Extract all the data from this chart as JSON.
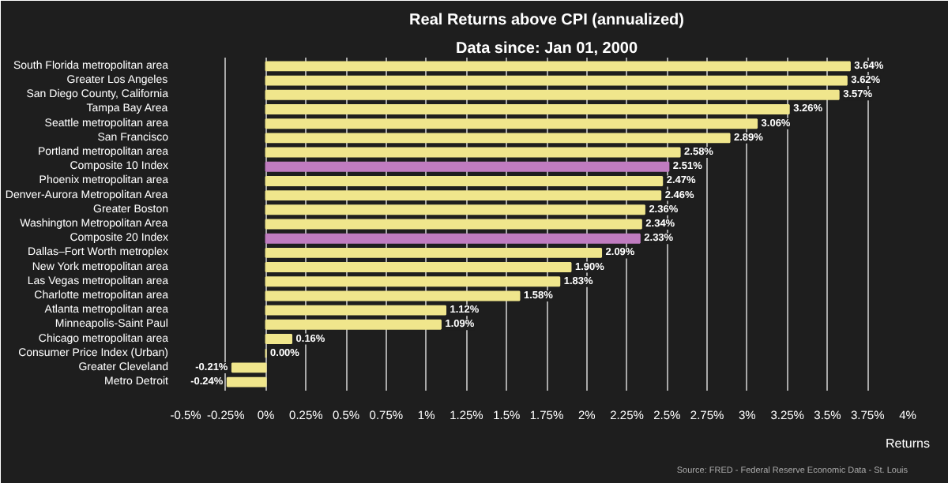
{
  "chart_data": {
    "type": "bar",
    "orientation": "horizontal",
    "title": "Real Returns above CPI (annualized)",
    "subtitle": "Data since: Jan 01, 2000",
    "xlabel": "Returns",
    "categories": [
      "South Florida metropolitan area",
      "Greater Los Angeles",
      "San Diego County, California",
      "Tampa Bay Area",
      "Seattle metropolitan area",
      "San Francisco",
      "Portland metropolitan area",
      "Composite 10 Index",
      "Phoenix metropolitan area",
      "Denver-Aurora Metropolitan Area",
      "Greater Boston",
      "Washington Metropolitan Area",
      "Composite 20 Index",
      "Dallas–Fort Worth metroplex",
      "New York metropolitan area",
      "Las Vegas metropolitan area",
      "Charlotte metropolitan area",
      "Atlanta metropolitan area",
      "Minneapolis-Saint Paul",
      "Chicago metropolitan area",
      "Consumer Price Index (Urban)",
      "Greater Cleveland",
      "Metro Detroit"
    ],
    "values": [
      3.64,
      3.62,
      3.57,
      3.26,
      3.06,
      2.89,
      2.58,
      2.51,
      2.47,
      2.46,
      2.36,
      2.34,
      2.33,
      2.09,
      1.9,
      1.83,
      1.58,
      1.12,
      1.09,
      0.16,
      0.0,
      -0.21,
      -0.24
    ],
    "value_labels": [
      "3.64%",
      "3.62%",
      "3.57%",
      "3.26%",
      "3.06%",
      "2.89%",
      "2.58%",
      "2.51%",
      "2.47%",
      "2.46%",
      "2.36%",
      "2.34%",
      "2.33%",
      "2.09%",
      "1.90%",
      "1.83%",
      "1.58%",
      "1.12%",
      "1.09%",
      "0.16%",
      "0.00%",
      "-0.21%",
      "-0.24%"
    ],
    "colors": [
      "#f0e68c",
      "#f0e68c",
      "#f0e68c",
      "#f0e68c",
      "#f0e68c",
      "#f0e68c",
      "#f0e68c",
      "#c07cc0",
      "#f0e68c",
      "#f0e68c",
      "#f0e68c",
      "#f0e68c",
      "#c07cc0",
      "#f0e68c",
      "#f0e68c",
      "#f0e68c",
      "#f0e68c",
      "#f0e68c",
      "#f0e68c",
      "#f0e68c",
      "#f0e68c",
      "#f0e68c",
      "#f0e68c"
    ],
    "xlim": [
      -0.5,
      4
    ],
    "xticks": [
      {
        "value": -0.5,
        "label": "-0.5%"
      },
      {
        "value": -0.25,
        "label": "-0.25%"
      },
      {
        "value": 0,
        "label": "0%"
      },
      {
        "value": 0.25,
        "label": "0.25%"
      },
      {
        "value": 0.5,
        "label": "0.5%"
      },
      {
        "value": 0.75,
        "label": "0.75%"
      },
      {
        "value": 1,
        "label": "1%"
      },
      {
        "value": 1.25,
        "label": "1.25%"
      },
      {
        "value": 1.5,
        "label": "1.5%"
      },
      {
        "value": 1.75,
        "label": "1.75%"
      },
      {
        "value": 2,
        "label": "2%"
      },
      {
        "value": 2.25,
        "label": "2.25%"
      },
      {
        "value": 2.5,
        "label": "2.5%"
      },
      {
        "value": 2.75,
        "label": "2.75%"
      },
      {
        "value": 3,
        "label": "3%"
      },
      {
        "value": 3.25,
        "label": "3.25%"
      },
      {
        "value": 3.5,
        "label": "3.5%"
      },
      {
        "value": 3.75,
        "label": "3.75%"
      },
      {
        "value": 4,
        "label": "4%"
      }
    ],
    "grid": "x",
    "annotations": [
      "Source: FRED - Federal Reserve Economic Data - St. Louis"
    ]
  }
}
